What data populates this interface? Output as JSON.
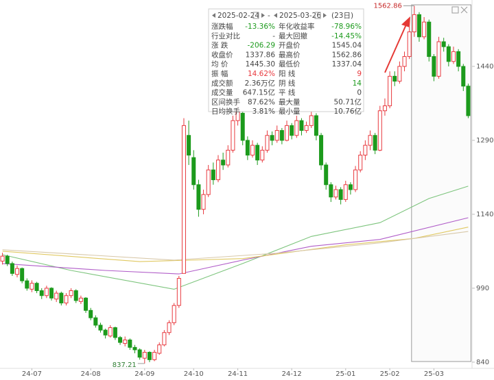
{
  "chart_data": {
    "type": "candlestick",
    "categories": [
      null,
      null,
      null,
      null,
      null,
      null,
      "24-07",
      null,
      null,
      null,
      null,
      null,
      null,
      null,
      null,
      null,
      null,
      null,
      "24-08",
      null,
      null,
      null,
      null,
      null,
      null,
      null,
      null,
      null,
      null,
      "24-09",
      null,
      null,
      null,
      null,
      null,
      null,
      null,
      null,
      null,
      "24-10",
      null,
      null,
      null,
      null,
      null,
      null,
      null,
      null,
      "24-11",
      null,
      null,
      null,
      null,
      null,
      null,
      null,
      null,
      null,
      null,
      "24-12",
      null,
      null,
      null,
      null,
      null,
      null,
      null,
      null,
      null,
      null,
      "25-01",
      null,
      null,
      null,
      null,
      null,
      null,
      null,
      null,
      "25-02",
      null,
      null,
      null,
      null,
      null,
      null,
      null,
      null,
      "25-03",
      null,
      null,
      null,
      null,
      null,
      null,
      null
    ],
    "candles": [
      [
        1045,
        1062,
        1038,
        1055
      ],
      [
        1055,
        1058,
        1035,
        1040
      ],
      [
        1040,
        1044,
        1015,
        1020
      ],
      [
        1018,
        1036,
        1012,
        1030
      ],
      [
        1030,
        1032,
        1000,
        1005
      ],
      [
        1005,
        1010,
        985,
        990
      ],
      [
        988,
        1006,
        982,
        1000
      ],
      [
        1000,
        1003,
        980,
        985
      ],
      [
        985,
        990,
        968,
        975
      ],
      [
        975,
        995,
        970,
        990
      ],
      [
        990,
        992,
        965,
        970
      ],
      [
        968,
        985,
        962,
        980
      ],
      [
        980,
        983,
        955,
        960
      ],
      [
        960,
        980,
        955,
        975
      ],
      [
        975,
        990,
        970,
        985
      ],
      [
        985,
        988,
        960,
        965
      ],
      [
        963,
        975,
        958,
        970
      ],
      [
        970,
        972,
        940,
        945
      ],
      [
        945,
        950,
        925,
        930
      ],
      [
        930,
        935,
        910,
        915
      ],
      [
        915,
        920,
        900,
        905
      ],
      [
        905,
        908,
        888,
        895
      ],
      [
        893,
        915,
        890,
        910
      ],
      [
        910,
        912,
        885,
        890
      ],
      [
        890,
        893,
        875,
        880
      ],
      [
        878,
        892,
        872,
        885
      ],
      [
        885,
        888,
        865,
        870
      ],
      [
        870,
        875,
        858,
        865
      ],
      [
        865,
        868,
        845,
        850
      ],
      [
        848,
        865,
        837.21,
        860
      ],
      [
        860,
        862,
        840,
        845
      ],
      [
        845,
        865,
        842,
        860
      ],
      [
        858,
        880,
        855,
        875
      ],
      [
        875,
        905,
        872,
        900
      ],
      [
        900,
        925,
        895,
        920
      ],
      [
        920,
        960,
        915,
        955
      ],
      [
        955,
        1015,
        950,
        1010
      ],
      [
        1020,
        1335,
        1020,
        1320
      ],
      [
        1300,
        1330,
        1240,
        1260
      ],
      [
        1255,
        1270,
        1190,
        1200
      ],
      [
        1200,
        1210,
        1135,
        1150
      ],
      [
        1150,
        1190,
        1140,
        1180
      ],
      [
        1180,
        1240,
        1175,
        1230
      ],
      [
        1230,
        1245,
        1200,
        1210
      ],
      [
        1210,
        1260,
        1205,
        1250
      ],
      [
        1250,
        1265,
        1230,
        1240
      ],
      [
        1240,
        1280,
        1235,
        1270
      ],
      [
        1270,
        1340,
        1265,
        1330
      ],
      [
        1330,
        1365,
        1320,
        1350
      ],
      [
        1345,
        1350,
        1280,
        1290
      ],
      [
        1290,
        1298,
        1250,
        1260
      ],
      [
        1260,
        1290,
        1255,
        1280
      ],
      [
        1280,
        1285,
        1240,
        1250
      ],
      [
        1250,
        1278,
        1245,
        1270
      ],
      [
        1270,
        1310,
        1265,
        1300
      ],
      [
        1300,
        1308,
        1280,
        1290
      ],
      [
        1290,
        1320,
        1285,
        1310
      ],
      [
        1310,
        1315,
        1282,
        1290
      ],
      [
        1290,
        1330,
        1288,
        1320
      ],
      [
        1320,
        1325,
        1292,
        1300
      ],
      [
        1300,
        1340,
        1295,
        1330
      ],
      [
        1330,
        1335,
        1300,
        1310
      ],
      [
        1310,
        1328,
        1305,
        1320
      ],
      [
        1320,
        1350,
        1315,
        1340
      ],
      [
        1340,
        1345,
        1290,
        1300
      ],
      [
        1300,
        1305,
        1230,
        1240
      ],
      [
        1240,
        1245,
        1190,
        1200
      ],
      [
        1200,
        1205,
        1165,
        1175
      ],
      [
        1175,
        1198,
        1170,
        1190
      ],
      [
        1190,
        1195,
        1160,
        1170
      ],
      [
        1170,
        1208,
        1165,
        1200
      ],
      [
        1200,
        1205,
        1180,
        1190
      ],
      [
        1190,
        1238,
        1185,
        1230
      ],
      [
        1230,
        1268,
        1225,
        1260
      ],
      [
        1260,
        1290,
        1250,
        1280
      ],
      [
        1280,
        1310,
        1270,
        1300
      ],
      [
        1300,
        1305,
        1262,
        1270
      ],
      [
        1270,
        1360,
        1268,
        1350
      ],
      [
        1350,
        1375,
        1340,
        1360
      ],
      [
        1360,
        1430,
        1355,
        1420
      ],
      [
        1420,
        1430,
        1400,
        1410
      ],
      [
        1410,
        1450,
        1405,
        1440
      ],
      [
        1440,
        1470,
        1430,
        1460
      ],
      [
        1460,
        1520,
        1455,
        1510
      ],
      [
        1510,
        1562.86,
        1500,
        1545
      ],
      [
        1545,
        1550,
        1490,
        1500
      ],
      [
        1500,
        1540,
        1495,
        1530
      ],
      [
        1530,
        1535,
        1450,
        1460
      ],
      [
        1460,
        1465,
        1410,
        1420
      ],
      [
        1420,
        1500,
        1415,
        1490
      ],
      [
        1490,
        1498,
        1470,
        1480
      ],
      [
        1480,
        1485,
        1440,
        1450
      ],
      [
        1450,
        1480,
        1445,
        1470
      ],
      [
        1470,
        1475,
        1430,
        1440
      ],
      [
        1440,
        1445,
        1390,
        1400
      ],
      [
        1400,
        1405,
        1335,
        1340
      ]
    ],
    "up_color": "#e8383d",
    "down_color": "#1c9a1c",
    "ma_lines": [
      {
        "color": "#7cc47c",
        "x": [
          0,
          14,
          35,
          49,
          63,
          77,
          87,
          95
        ],
        "values": [
          1058,
          1026,
          988,
          1040,
          1095,
          1123,
          1172,
          1197
        ]
      },
      {
        "color": "#b05cc8",
        "x": [
          0,
          21,
          36,
          49,
          63,
          77,
          95
        ],
        "values": [
          1040,
          1026,
          1019,
          1047,
          1075,
          1089,
          1133
        ]
      },
      {
        "color": "#e0c860",
        "x": [
          0,
          28,
          49,
          70,
          84,
          95
        ],
        "values": [
          1065,
          1044,
          1050,
          1078,
          1091,
          1114
        ]
      },
      {
        "color": "#d8c8a8",
        "x": [
          0,
          35,
          56,
          77,
          95
        ],
        "values": [
          1068,
          1047,
          1061,
          1082,
          1105
        ]
      }
    ],
    "ylim": [
      826,
      1574.7
    ],
    "yticks": [
      840,
      990,
      1140,
      1290,
      1440
    ],
    "high_mark": 1562.86,
    "low_mark": 837.21
  },
  "panel": {
    "start_date": "2025-02-24",
    "separator": "-",
    "end_date": "2025-03-26",
    "days": "(23日)",
    "rows": [
      [
        "涨跌幅",
        "-13.36%",
        "年化收益率",
        "-78.96%"
      ],
      [
        "行业对比",
        "-",
        "最大回撤",
        "-14.45%"
      ],
      [
        "涨  跌",
        "-206.29",
        "开盘价",
        "1545.04"
      ],
      [
        "收盘价",
        "1337.86",
        "最高价",
        "1562.86"
      ],
      [
        "均  价",
        "1445.30",
        "最低价",
        "1337.04"
      ],
      [
        "振  幅",
        "14.62%",
        "阳  线",
        "9"
      ],
      [
        "成交额",
        "2.36万亿",
        "阴  线",
        "14"
      ],
      [
        "成交量",
        "647.15亿",
        "平  线",
        "0"
      ],
      [
        "区间换手",
        "87.62%",
        "最大量",
        "50.71亿"
      ],
      [
        "日均换手",
        "3.81%",
        "最小量",
        "10.76亿"
      ]
    ]
  }
}
